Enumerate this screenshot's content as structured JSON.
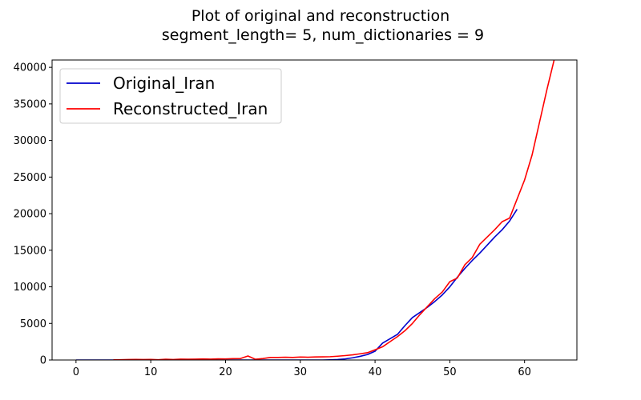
{
  "chart_data": {
    "type": "line",
    "title_lines": [
      "Plot of original and reconstruction",
      "segment_length= 5, num_dictionaries = 9"
    ],
    "xlabel": "",
    "ylabel": "",
    "xlim": [
      -3.2,
      67
    ],
    "ylim": [
      0,
      41000
    ],
    "xticks": [
      0,
      10,
      20,
      30,
      40,
      50,
      60
    ],
    "yticks": [
      0,
      5000,
      10000,
      15000,
      20000,
      25000,
      30000,
      35000,
      40000
    ],
    "grid": false,
    "legend_position": "top-left",
    "series": [
      {
        "name": "Original_Iran",
        "color": "#0000cc",
        "x": [
          0,
          1,
          2,
          3,
          4,
          5,
          6,
          7,
          8,
          9,
          10,
          11,
          12,
          13,
          14,
          15,
          16,
          17,
          18,
          19,
          20,
          21,
          22,
          23,
          24,
          25,
          26,
          27,
          28,
          29,
          30,
          31,
          32,
          33,
          34,
          35,
          36,
          37,
          38,
          39,
          40,
          41,
          42,
          43,
          44,
          45,
          46,
          47,
          48,
          49,
          50,
          51,
          52,
          53,
          54,
          55,
          56,
          57,
          58,
          59
        ],
        "y": [
          0,
          0,
          0,
          0,
          0,
          0,
          0,
          0,
          0,
          0,
          0,
          0,
          0,
          0,
          0,
          0,
          0,
          0,
          0,
          0,
          0,
          0,
          0,
          0,
          0,
          0,
          0,
          0,
          0,
          0,
          0,
          0,
          0,
          0,
          20,
          60,
          150,
          300,
          500,
          750,
          1200,
          2300,
          2900,
          3500,
          4700,
          5800,
          6500,
          7200,
          8000,
          8900,
          10000,
          11300,
          12500,
          13600,
          14600,
          15700,
          16800,
          17800,
          19000,
          20600
        ]
      },
      {
        "name": "Reconstructed_Iran",
        "color": "#ff0000",
        "x": [
          5,
          6,
          7,
          8,
          9,
          10,
          11,
          12,
          13,
          14,
          15,
          16,
          17,
          18,
          19,
          20,
          21,
          22,
          23,
          24,
          25,
          26,
          27,
          28,
          29,
          30,
          31,
          32,
          33,
          34,
          35,
          36,
          37,
          38,
          39,
          40,
          41,
          42,
          43,
          44,
          45,
          46,
          47,
          48,
          49,
          50,
          51,
          52,
          53,
          54,
          55,
          56,
          57,
          58,
          59,
          60,
          61,
          62,
          63,
          64
        ],
        "y": [
          20,
          40,
          60,
          80,
          60,
          80,
          40,
          100,
          60,
          120,
          100,
          120,
          140,
          120,
          160,
          150,
          180,
          200,
          550,
          100,
          200,
          350,
          350,
          380,
          350,
          400,
          380,
          420,
          430,
          450,
          520,
          600,
          700,
          850,
          1000,
          1400,
          1800,
          2500,
          3200,
          4000,
          5000,
          6200,
          7300,
          8400,
          9300,
          10700,
          11200,
          13000,
          14000,
          15800,
          16800,
          17800,
          18900,
          19400,
          22000,
          24600,
          28000,
          32500,
          37000,
          41200
        ]
      }
    ]
  }
}
